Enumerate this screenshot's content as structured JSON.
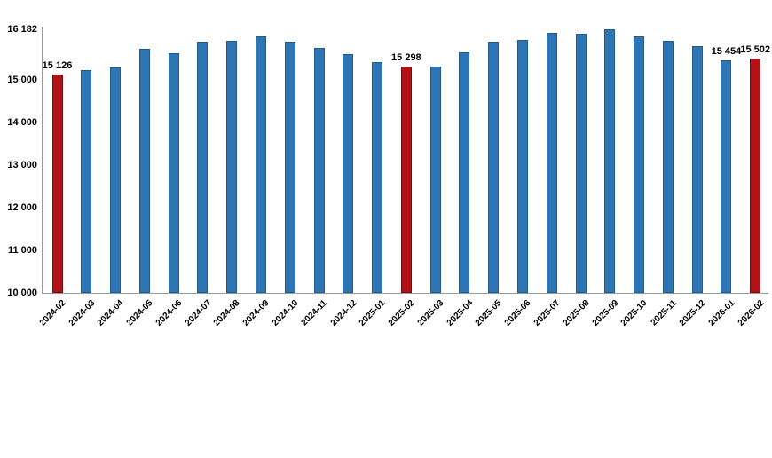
{
  "page": {
    "background": "#ffffff"
  },
  "chart_data": {
    "type": "bar",
    "title": "",
    "xlabel": "",
    "ylabel": "",
    "grid": false,
    "legend_position": "none",
    "categories": [
      "2024-02",
      "2024-03",
      "2024-04",
      "2024-05",
      "2024-06",
      "2024-07",
      "2024-08",
      "2024-09",
      "2024-10",
      "2024-11",
      "2024-12",
      "2025-01",
      "2025-02",
      "2025-03",
      "2025-04",
      "2025-05",
      "2025-06",
      "2025-07",
      "2025-08",
      "2025-09",
      "2025-10",
      "2025-11",
      "2025-12",
      "2026-01",
      "2026-02"
    ],
    "values": [
      15126,
      15230,
      15281,
      15714,
      15622,
      15900,
      15905,
      16008,
      15885,
      15755,
      15590,
      15412,
      15298,
      15310,
      15640,
      15885,
      15926,
      16100,
      16085,
      16182,
      16020,
      15905,
      15785,
      15454,
      15502
    ],
    "highlighted_categories": [
      "2024-02",
      "2025-02",
      "2026-02"
    ],
    "data_labels": [
      {
        "category": "2024-02",
        "text": "15 126"
      },
      {
        "category": "2025-02",
        "text": "15 298"
      },
      {
        "category": "2026-01",
        "text": "15 454"
      },
      {
        "category": "2026-02",
        "text": "15 502"
      }
    ],
    "y_axis": {
      "min": 10000,
      "max": 16182,
      "ticks": [
        {
          "value": 16182,
          "label": "16 182"
        },
        {
          "value": 15000,
          "label": "15 000"
        },
        {
          "value": 14000,
          "label": "14 000"
        },
        {
          "value": 13000,
          "label": "13 000"
        },
        {
          "value": 12000,
          "label": "12 000"
        },
        {
          "value": 11000,
          "label": "11 000"
        },
        {
          "value": 10000,
          "label": "10 000"
        }
      ]
    },
    "colors": {
      "bar_fill": "#2E75B6",
      "bar_border": "#1F5C8B",
      "highlight_fill": "#B01218",
      "highlight_border": "#7A0C10",
      "axis_line": "#9a9a9a",
      "text": "#000000"
    }
  }
}
